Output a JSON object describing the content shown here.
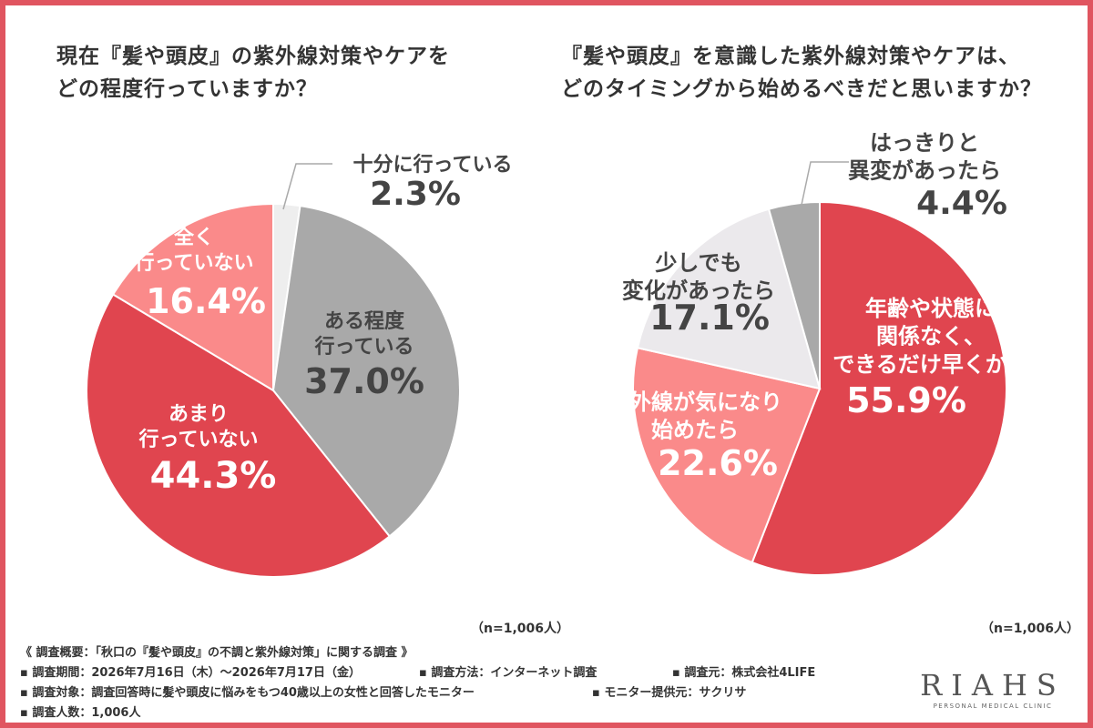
{
  "chart_data": [
    {
      "type": "pie",
      "title_lines": [
        "現在『髪や頭皮』の紫外線対策やケアを",
        "どの程度行っていますか？"
      ],
      "slices": [
        {
          "label_lines": [
            "十分に行っている"
          ],
          "value": 2.3,
          "value_text": "2.3%",
          "color": "#eeeeee"
        },
        {
          "label_lines": [
            "ある程度",
            "行っている"
          ],
          "value": 37.0,
          "value_text": "37.0%",
          "color": "#a9a9a9"
        },
        {
          "label_lines": [
            "あまり",
            "行っていない"
          ],
          "value": 44.3,
          "value_text": "44.3%",
          "color": "#e0454f"
        },
        {
          "label_lines": [
            "全く",
            "行っていない"
          ],
          "value": 16.4,
          "value_text": "16.4%",
          "color": "#fa8a8a"
        }
      ],
      "n_label": "（n=1,006人）"
    },
    {
      "type": "pie",
      "title_lines": [
        "『髪や頭皮』を意識した紫外線対策やケアは、",
        "どのタイミングから始めるべきだと思いますか？"
      ],
      "slices": [
        {
          "label_lines": [
            "年齢や状態に",
            "関係なく、",
            "できるだけ早くから"
          ],
          "value": 55.9,
          "value_text": "55.9%",
          "color": "#e0454f"
        },
        {
          "label_lines": [
            "紫外線が気になり",
            "始めたら"
          ],
          "value": 22.6,
          "value_text": "22.6%",
          "color": "#fa8a8a"
        },
        {
          "label_lines": [
            "少しでも",
            "変化があったら"
          ],
          "value": 17.1,
          "value_text": "17.1%",
          "color": "#ebe9ec"
        },
        {
          "label_lines": [
            "はっきりと",
            "異変があったら"
          ],
          "value": 4.4,
          "value_text": "4.4%",
          "color": "#a9a9a9"
        }
      ],
      "n_label": "（n=1,006人）"
    }
  ],
  "footer": {
    "overview": "《 調査概要：「秋口の『髪や頭皮』の不調と紫外線対策」に関する調査 》",
    "period": "▪ 調査期間：2026年7月16日（木）～2026年7月17日（金）",
    "method": "▪ 調査方法：インターネット調査",
    "source": "▪ 調査元：株式会社4LIFE",
    "target": "▪ 調査対象：調査回答時に髪や頭皮に悩みをもつ40歳以上の女性と回答したモニター",
    "provider": "▪ モニター提供元：サクリサ",
    "count": "▪ 調査人数：1,006人"
  },
  "logo": {
    "mark": "RIAHS",
    "sub": "PERSONAL MEDICAL CLINIC"
  }
}
